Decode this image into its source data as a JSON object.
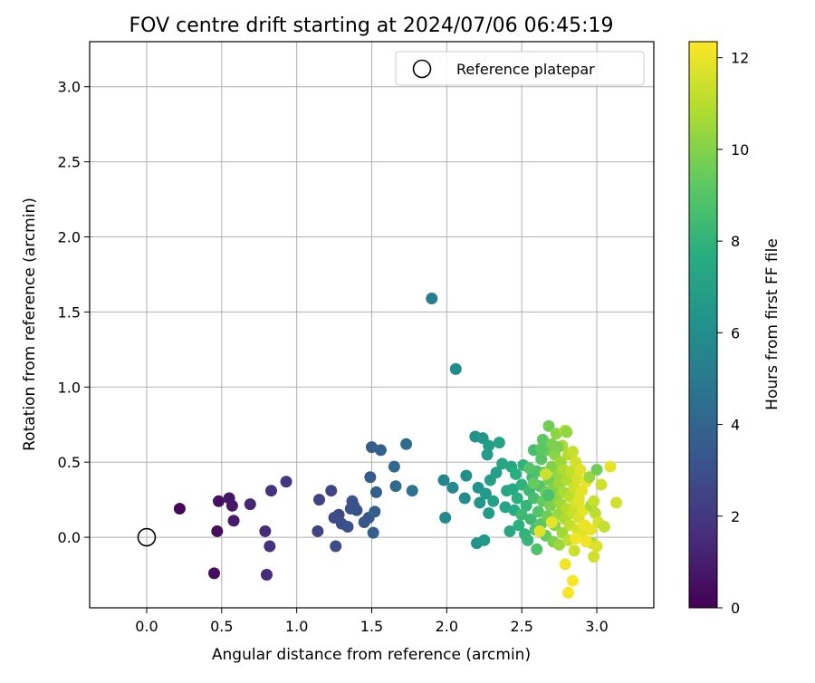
{
  "chart_data": {
    "type": "scatter",
    "title": "FOV centre drift starting at 2024/07/06 06:45:19",
    "xlabel": "Angular distance from reference (arcmin)",
    "ylabel": "Rotation from reference (arcmin)",
    "xlim": [
      -0.38,
      3.38
    ],
    "ylim": [
      -0.47,
      3.3
    ],
    "xticks": [
      "0.0",
      "0.5",
      "1.0",
      "1.5",
      "2.0",
      "2.5",
      "3.0"
    ],
    "yticks": [
      "0.0",
      "0.5",
      "1.0",
      "1.5",
      "2.0",
      "2.5",
      "3.0"
    ],
    "grid": true,
    "legend": {
      "placement": "upper-right",
      "label": "Reference platepar"
    },
    "reference_point": {
      "x": 0.0,
      "y": 0.0
    },
    "colorbar": {
      "label": "Hours from first FF file",
      "colormap": "viridis",
      "range": [
        0,
        12.35
      ],
      "ticks": [
        "0",
        "2",
        "4",
        "6",
        "8",
        "10",
        "12"
      ]
    },
    "points": [
      {
        "x": 0.22,
        "y": 0.19,
        "c": 0.2
      },
      {
        "x": 0.45,
        "y": -0.24,
        "c": 0.4
      },
      {
        "x": 0.47,
        "y": 0.04,
        "c": 0.5
      },
      {
        "x": 0.48,
        "y": 0.24,
        "c": 0.6
      },
      {
        "x": 0.55,
        "y": 0.26,
        "c": 0.7
      },
      {
        "x": 0.57,
        "y": 0.21,
        "c": 0.8
      },
      {
        "x": 0.58,
        "y": 0.11,
        "c": 0.9
      },
      {
        "x": 0.69,
        "y": 0.22,
        "c": 1.3
      },
      {
        "x": 0.79,
        "y": 0.04,
        "c": 1.5
      },
      {
        "x": 0.8,
        "y": -0.25,
        "c": 1.5
      },
      {
        "x": 0.82,
        "y": -0.06,
        "c": 1.7
      },
      {
        "x": 0.83,
        "y": 0.31,
        "c": 1.8
      },
      {
        "x": 0.93,
        "y": 0.37,
        "c": 2.0
      },
      {
        "x": 1.14,
        "y": 0.04,
        "c": 2.5
      },
      {
        "x": 1.15,
        "y": 0.25,
        "c": 2.5
      },
      {
        "x": 1.23,
        "y": 0.31,
        "c": 2.6
      },
      {
        "x": 1.25,
        "y": 0.13,
        "c": 2.7
      },
      {
        "x": 1.26,
        "y": -0.06,
        "c": 2.8
      },
      {
        "x": 1.28,
        "y": 0.15,
        "c": 2.8
      },
      {
        "x": 1.3,
        "y": 0.09,
        "c": 2.9
      },
      {
        "x": 1.34,
        "y": 0.07,
        "c": 3.0
      },
      {
        "x": 1.36,
        "y": 0.19,
        "c": 3.0
      },
      {
        "x": 1.37,
        "y": 0.24,
        "c": 3.1
      },
      {
        "x": 1.38,
        "y": 0.21,
        "c": 3.1
      },
      {
        "x": 1.4,
        "y": 0.18,
        "c": 3.2
      },
      {
        "x": 1.45,
        "y": 0.1,
        "c": 3.3
      },
      {
        "x": 1.48,
        "y": 0.13,
        "c": 3.4
      },
      {
        "x": 1.49,
        "y": 0.4,
        "c": 3.5
      },
      {
        "x": 1.5,
        "y": 0.6,
        "c": 3.6
      },
      {
        "x": 1.51,
        "y": 0.03,
        "c": 3.7
      },
      {
        "x": 1.52,
        "y": 0.17,
        "c": 3.7
      },
      {
        "x": 1.53,
        "y": 0.3,
        "c": 3.8
      },
      {
        "x": 1.56,
        "y": 0.58,
        "c": 3.8
      },
      {
        "x": 1.65,
        "y": 0.47,
        "c": 4.2
      },
      {
        "x": 1.66,
        "y": 0.34,
        "c": 4.3
      },
      {
        "x": 1.73,
        "y": 0.62,
        "c": 4.4
      },
      {
        "x": 1.77,
        "y": 0.31,
        "c": 4.7
      },
      {
        "x": 1.9,
        "y": 1.59,
        "c": 5.3
      },
      {
        "x": 1.98,
        "y": 0.38,
        "c": 5.6
      },
      {
        "x": 1.99,
        "y": 0.13,
        "c": 5.8
      },
      {
        "x": 2.04,
        "y": 0.33,
        "c": 5.8
      },
      {
        "x": 2.06,
        "y": 1.12,
        "c": 5.9
      },
      {
        "x": 2.12,
        "y": 0.26,
        "c": 6.0
      },
      {
        "x": 2.13,
        "y": 0.41,
        "c": 6.1
      },
      {
        "x": 2.19,
        "y": 0.67,
        "c": 6.2
      },
      {
        "x": 2.2,
        "y": -0.04,
        "c": 6.3
      },
      {
        "x": 2.21,
        "y": 0.33,
        "c": 6.4
      },
      {
        "x": 2.22,
        "y": 0.23,
        "c": 6.5
      },
      {
        "x": 2.24,
        "y": 0.66,
        "c": 6.5
      },
      {
        "x": 2.25,
        "y": -0.02,
        "c": 6.6
      },
      {
        "x": 2.26,
        "y": 0.29,
        "c": 6.6
      },
      {
        "x": 2.27,
        "y": 0.55,
        "c": 6.7
      },
      {
        "x": 2.28,
        "y": 0.16,
        "c": 6.8
      },
      {
        "x": 2.28,
        "y": 0.61,
        "c": 6.8
      },
      {
        "x": 2.29,
        "y": 0.38,
        "c": 6.9
      },
      {
        "x": 2.31,
        "y": 0.24,
        "c": 7.0
      },
      {
        "x": 2.33,
        "y": 0.43,
        "c": 7.0
      },
      {
        "x": 2.35,
        "y": 0.63,
        "c": 7.1
      },
      {
        "x": 2.37,
        "y": 0.49,
        "c": 7.2
      },
      {
        "x": 2.39,
        "y": 0.2,
        "c": 7.2
      },
      {
        "x": 2.4,
        "y": 0.31,
        "c": 7.3
      },
      {
        "x": 2.42,
        "y": 0.04,
        "c": 7.4
      },
      {
        "x": 2.43,
        "y": 0.47,
        "c": 7.4
      },
      {
        "x": 2.44,
        "y": 0.32,
        "c": 7.5
      },
      {
        "x": 2.45,
        "y": 0.18,
        "c": 7.6
      },
      {
        "x": 2.46,
        "y": 0.42,
        "c": 7.7
      },
      {
        "x": 2.47,
        "y": 0.26,
        "c": 7.8
      },
      {
        "x": 2.48,
        "y": 0.08,
        "c": 7.8
      },
      {
        "x": 2.5,
        "y": 0.35,
        "c": 7.9
      },
      {
        "x": 2.51,
        "y": 0.48,
        "c": 8.0
      },
      {
        "x": 2.52,
        "y": 0.02,
        "c": 8.0
      },
      {
        "x": 2.53,
        "y": 0.21,
        "c": 8.1
      },
      {
        "x": 2.54,
        "y": -0.02,
        "c": 8.2
      },
      {
        "x": 2.55,
        "y": 0.31,
        "c": 8.3
      },
      {
        "x": 2.56,
        "y": 0.12,
        "c": 8.4
      },
      {
        "x": 2.57,
        "y": 0.4,
        "c": 8.5
      },
      {
        "x": 2.58,
        "y": 0.58,
        "c": 8.6
      },
      {
        "x": 2.58,
        "y": 0.26,
        "c": 8.6
      },
      {
        "x": 2.59,
        "y": 0.05,
        "c": 8.7
      },
      {
        "x": 2.6,
        "y": 0.44,
        "c": 8.8
      },
      {
        "x": 2.6,
        "y": -0.08,
        "c": 8.8
      },
      {
        "x": 2.61,
        "y": 0.17,
        "c": 8.9
      },
      {
        "x": 2.62,
        "y": 0.34,
        "c": 9.0
      },
      {
        "x": 2.63,
        "y": 0.52,
        "c": 9.1
      },
      {
        "x": 2.63,
        "y": 0.09,
        "c": 9.1
      },
      {
        "x": 2.64,
        "y": 0.65,
        "c": 9.2
      },
      {
        "x": 2.64,
        "y": 0.24,
        "c": 9.3
      },
      {
        "x": 2.65,
        "y": 0.43,
        "c": 9.3
      },
      {
        "x": 2.66,
        "y": 0.01,
        "c": 9.4
      },
      {
        "x": 2.66,
        "y": 0.3,
        "c": 9.5
      },
      {
        "x": 2.67,
        "y": 0.58,
        "c": 9.5
      },
      {
        "x": 2.67,
        "y": 0.14,
        "c": 9.6
      },
      {
        "x": 2.68,
        "y": 0.74,
        "c": 9.6
      },
      {
        "x": 2.68,
        "y": 0.38,
        "c": 9.7
      },
      {
        "x": 2.69,
        "y": 0.21,
        "c": 9.8
      },
      {
        "x": 2.7,
        "y": 0.62,
        "c": 9.8
      },
      {
        "x": 2.7,
        "y": 0.47,
        "c": 9.9
      },
      {
        "x": 2.71,
        "y": -0.03,
        "c": 9.9
      },
      {
        "x": 2.71,
        "y": 0.32,
        "c": 10.0
      },
      {
        "x": 2.72,
        "y": 0.08,
        "c": 10.1
      },
      {
        "x": 2.72,
        "y": 0.55,
        "c": 10.1
      },
      {
        "x": 2.73,
        "y": 0.26,
        "c": 10.2
      },
      {
        "x": 2.73,
        "y": 0.69,
        "c": 10.2
      },
      {
        "x": 2.74,
        "y": 0.42,
        "c": 10.3
      },
      {
        "x": 2.74,
        "y": 0.15,
        "c": 10.4
      },
      {
        "x": 2.75,
        "y": 0.36,
        "c": 10.4
      },
      {
        "x": 2.75,
        "y": -0.05,
        "c": 10.5
      },
      {
        "x": 2.76,
        "y": 0.5,
        "c": 10.5
      },
      {
        "x": 2.76,
        "y": 0.22,
        "c": 10.6
      },
      {
        "x": 2.77,
        "y": 0.03,
        "c": 10.6
      },
      {
        "x": 2.77,
        "y": 0.61,
        "c": 10.7
      },
      {
        "x": 2.78,
        "y": 0.3,
        "c": 10.7
      },
      {
        "x": 2.78,
        "y": 0.45,
        "c": 10.8
      },
      {
        "x": 2.79,
        "y": 0.12,
        "c": 10.8
      },
      {
        "x": 2.79,
        "y": 0.71,
        "c": 10.9
      },
      {
        "x": 2.8,
        "y": 0.38,
        "c": 10.9
      },
      {
        "x": 2.8,
        "y": 0.19,
        "c": 11.0
      },
      {
        "x": 2.81,
        "y": 0.55,
        "c": 11.0
      },
      {
        "x": 2.81,
        "y": -0.02,
        "c": 11.1
      },
      {
        "x": 2.82,
        "y": 0.27,
        "c": 11.1
      },
      {
        "x": 2.82,
        "y": 0.08,
        "c": 11.2
      },
      {
        "x": 2.83,
        "y": 0.44,
        "c": 11.2
      },
      {
        "x": 2.84,
        "y": 0.57,
        "c": 11.3
      },
      {
        "x": 2.84,
        "y": 0.16,
        "c": 11.3
      },
      {
        "x": 2.85,
        "y": 0.33,
        "c": 11.4
      },
      {
        "x": 2.85,
        "y": -0.09,
        "c": 11.4
      },
      {
        "x": 2.86,
        "y": 0.5,
        "c": 11.5
      },
      {
        "x": 2.86,
        "y": 0.22,
        "c": 11.5
      },
      {
        "x": 2.87,
        "y": 0.05,
        "c": 11.6
      },
      {
        "x": 2.87,
        "y": 0.39,
        "c": 11.6
      },
      {
        "x": 2.88,
        "y": 0.13,
        "c": 11.7
      },
      {
        "x": 2.88,
        "y": 0.26,
        "c": 11.7
      },
      {
        "x": 2.89,
        "y": 0.45,
        "c": 11.8
      },
      {
        "x": 2.9,
        "y": 0.01,
        "c": 11.8
      },
      {
        "x": 2.9,
        "y": 0.31,
        "c": 11.9
      },
      {
        "x": 2.91,
        "y": 0.18,
        "c": 11.9
      },
      {
        "x": 2.92,
        "y": 0.08,
        "c": 12.0
      },
      {
        "x": 2.93,
        "y": 0.37,
        "c": 12.0
      },
      {
        "x": 2.79,
        "y": -0.18,
        "c": 12.1
      },
      {
        "x": 2.81,
        "y": -0.37,
        "c": 12.2
      },
      {
        "x": 2.84,
        "y": -0.29,
        "c": 12.2
      },
      {
        "x": 2.86,
        "y": -0.01,
        "c": 12.1
      },
      {
        "x": 2.88,
        "y": 0.24,
        "c": 11.8
      },
      {
        "x": 2.7,
        "y": 0.1,
        "c": 11.9
      },
      {
        "x": 2.66,
        "y": 0.42,
        "c": 11.4
      },
      {
        "x": 2.95,
        "y": 0.4,
        "c": 10.5
      },
      {
        "x": 2.96,
        "y": 0.21,
        "c": 10.7
      },
      {
        "x": 2.97,
        "y": -0.04,
        "c": 10.9
      },
      {
        "x": 2.98,
        "y": 0.24,
        "c": 11.3
      },
      {
        "x": 2.98,
        "y": -0.13,
        "c": 11.5
      },
      {
        "x": 2.99,
        "y": 0.16,
        "c": 11.1
      },
      {
        "x": 3.0,
        "y": 0.45,
        "c": 9.6
      },
      {
        "x": 3.0,
        "y": -0.06,
        "c": 11.7
      },
      {
        "x": 3.01,
        "y": 0.1,
        "c": 11.6
      },
      {
        "x": 3.03,
        "y": 0.35,
        "c": 11.4
      },
      {
        "x": 3.05,
        "y": 0.07,
        "c": 11.2
      },
      {
        "x": 3.09,
        "y": 0.47,
        "c": 11.9
      },
      {
        "x": 3.13,
        "y": 0.23,
        "c": 11.5
      },
      {
        "x": 2.96,
        "y": 0.05,
        "c": 12.0
      },
      {
        "x": 2.93,
        "y": -0.03,
        "c": 12.1
      },
      {
        "x": 2.63,
        "y": 0.59,
        "c": 9.2
      },
      {
        "x": 2.55,
        "y": 0.46,
        "c": 9.0
      },
      {
        "x": 2.5,
        "y": 0.15,
        "c": 8.4
      },
      {
        "x": 2.58,
        "y": 0.36,
        "c": 9.4
      },
      {
        "x": 2.68,
        "y": 0.28,
        "c": 8.7
      },
      {
        "x": 2.74,
        "y": 0.6,
        "c": 9.9
      },
      {
        "x": 2.8,
        "y": 0.7,
        "c": 10.3
      },
      {
        "x": 2.62,
        "y": 0.04,
        "c": 11.8
      }
    ]
  }
}
